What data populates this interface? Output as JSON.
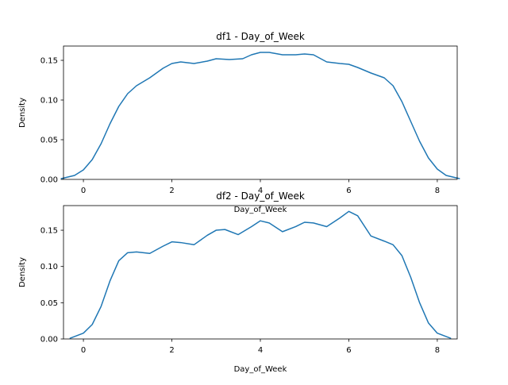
{
  "chart_data": [
    {
      "type": "line",
      "title": "df1 - Day_of_Week",
      "xlabel": "Day_of_Week",
      "ylabel": "Density",
      "xlim": [
        -0.45,
        8.45
      ],
      "ylim": [
        0,
        0.168
      ],
      "xticks": [
        "0",
        "2",
        "4",
        "6",
        "8"
      ],
      "yticks": [
        "0.00",
        "0.05",
        "0.10",
        "0.15"
      ],
      "grid": false,
      "series": [
        {
          "color": "#1f77b4",
          "x": [
            -0.5,
            -0.2,
            0.0,
            0.2,
            0.4,
            0.6,
            0.8,
            1.0,
            1.2,
            1.5,
            1.8,
            2.0,
            2.2,
            2.5,
            2.8,
            3.0,
            3.3,
            3.6,
            3.8,
            4.0,
            4.2,
            4.5,
            4.8,
            5.0,
            5.2,
            5.5,
            5.8,
            6.0,
            6.2,
            6.5,
            6.8,
            7.0,
            7.2,
            7.4,
            7.6,
            7.8,
            8.0,
            8.2,
            8.5
          ],
          "y": [
            0.001,
            0.005,
            0.012,
            0.025,
            0.045,
            0.07,
            0.092,
            0.108,
            0.118,
            0.128,
            0.14,
            0.146,
            0.148,
            0.146,
            0.149,
            0.152,
            0.151,
            0.152,
            0.157,
            0.16,
            0.16,
            0.157,
            0.157,
            0.158,
            0.157,
            0.148,
            0.146,
            0.145,
            0.141,
            0.134,
            0.128,
            0.118,
            0.098,
            0.073,
            0.048,
            0.027,
            0.013,
            0.005,
            0.001
          ]
        }
      ]
    },
    {
      "type": "line",
      "title": "df2 - Day_of_Week",
      "xlabel": "Day_of_Week",
      "ylabel": "Density",
      "xlim": [
        -0.45,
        8.45
      ],
      "ylim": [
        0,
        0.184
      ],
      "xticks": [
        "0",
        "2",
        "4",
        "6",
        "8"
      ],
      "yticks": [
        "0.00",
        "0.05",
        "0.10",
        "0.15"
      ],
      "grid": false,
      "series": [
        {
          "color": "#1f77b4",
          "x": [
            -0.3,
            0.0,
            0.2,
            0.4,
            0.6,
            0.8,
            1.0,
            1.2,
            1.5,
            1.8,
            2.0,
            2.2,
            2.5,
            2.8,
            3.0,
            3.2,
            3.5,
            3.8,
            4.0,
            4.2,
            4.5,
            4.8,
            5.0,
            5.2,
            5.5,
            5.8,
            6.0,
            6.2,
            6.5,
            6.8,
            7.0,
            7.2,
            7.4,
            7.6,
            7.8,
            8.0,
            8.3
          ],
          "y": [
            0.001,
            0.008,
            0.02,
            0.045,
            0.08,
            0.108,
            0.119,
            0.12,
            0.118,
            0.128,
            0.134,
            0.133,
            0.13,
            0.143,
            0.15,
            0.151,
            0.144,
            0.155,
            0.163,
            0.16,
            0.148,
            0.155,
            0.161,
            0.16,
            0.155,
            0.167,
            0.176,
            0.17,
            0.142,
            0.135,
            0.13,
            0.115,
            0.085,
            0.05,
            0.022,
            0.008,
            0.001
          ]
        }
      ]
    }
  ]
}
